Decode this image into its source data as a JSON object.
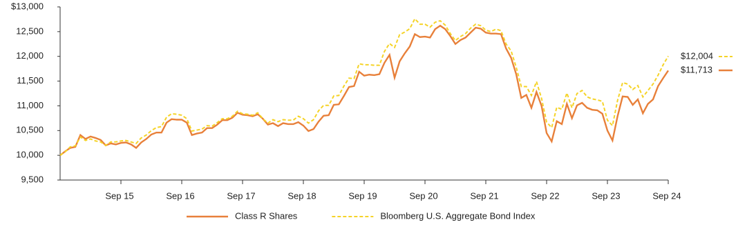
{
  "chart_data": {
    "type": "line",
    "categories": [
      null,
      null,
      null,
      null,
      null,
      null,
      null,
      null,
      null,
      null,
      null,
      null,
      "Sep 15",
      null,
      null,
      null,
      null,
      null,
      null,
      null,
      null,
      null,
      null,
      null,
      "Sep 16",
      null,
      null,
      null,
      null,
      null,
      null,
      null,
      null,
      null,
      null,
      null,
      "Sep 17",
      null,
      null,
      null,
      null,
      null,
      null,
      null,
      null,
      null,
      null,
      null,
      "Sep 18",
      null,
      null,
      null,
      null,
      null,
      null,
      null,
      null,
      null,
      null,
      null,
      "Sep 19",
      null,
      null,
      null,
      null,
      null,
      null,
      null,
      null,
      null,
      null,
      null,
      "Sep 20",
      null,
      null,
      null,
      null,
      null,
      null,
      null,
      null,
      null,
      null,
      null,
      "Sep 21",
      null,
      null,
      null,
      null,
      null,
      null,
      null,
      null,
      null,
      null,
      null,
      "Sep 22",
      null,
      null,
      null,
      null,
      null,
      null,
      null,
      null,
      null,
      null,
      null,
      "Sep 23",
      null,
      null,
      null,
      null,
      null,
      null,
      null,
      null,
      null,
      null,
      null,
      "Sep 24"
    ],
    "series": [
      {
        "name": "Class R Shares",
        "color": "#e8803a",
        "dash": false,
        "values": [
          10000,
          10080,
          10150,
          10170,
          10410,
          10330,
          10380,
          10350,
          10310,
          10200,
          10240,
          10220,
          10250,
          10260,
          10220,
          10150,
          10260,
          10330,
          10420,
          10460,
          10460,
          10660,
          10730,
          10720,
          10720,
          10660,
          10410,
          10440,
          10460,
          10550,
          10550,
          10620,
          10710,
          10710,
          10760,
          10860,
          10820,
          10810,
          10790,
          10830,
          10740,
          10620,
          10650,
          10590,
          10650,
          10630,
          10630,
          10670,
          10600,
          10490,
          10530,
          10680,
          10800,
          10810,
          11020,
          11030,
          11200,
          11380,
          11400,
          11690,
          11610,
          11630,
          11620,
          11640,
          11870,
          12030,
          11570,
          11900,
          12060,
          12200,
          12450,
          12390,
          12400,
          12380,
          12550,
          12620,
          12550,
          12410,
          12250,
          12330,
          12380,
          12480,
          12580,
          12560,
          12480,
          12460,
          12460,
          12450,
          12160,
          11970,
          11640,
          11160,
          11220,
          10960,
          11280,
          11000,
          10450,
          10280,
          10690,
          10630,
          11040,
          10750,
          11010,
          11060,
          10960,
          10920,
          10910,
          10840,
          10500,
          10300,
          10790,
          11190,
          11180,
          11020,
          11130,
          10850,
          11040,
          11130,
          11400,
          11560,
          11713
        ],
        "value_labels": [
          null,
          null,
          null,
          null,
          null,
          null,
          null,
          null,
          null,
          null,
          null,
          null,
          null,
          null,
          null,
          null,
          null,
          null,
          null,
          null,
          null,
          null,
          null,
          null,
          null,
          null,
          null,
          null,
          null,
          null,
          null,
          null,
          null,
          null,
          null,
          null,
          null,
          null,
          null,
          null,
          null,
          null,
          null,
          null,
          null,
          null,
          null,
          null,
          null,
          null,
          null,
          null,
          null,
          null,
          null,
          null,
          null,
          null,
          null,
          null,
          null,
          null,
          null,
          null,
          null,
          null,
          null,
          null,
          null,
          null,
          null,
          null,
          null,
          null,
          null,
          null,
          null,
          null,
          null,
          null,
          null,
          null,
          null,
          null,
          null,
          null,
          null,
          null,
          null,
          null,
          null,
          null,
          null,
          null,
          null,
          null,
          null,
          null,
          null,
          null,
          null,
          null,
          null,
          null,
          null,
          null,
          null,
          null,
          null,
          null,
          null,
          null,
          null,
          null,
          null,
          null,
          null,
          null,
          null,
          null,
          "$11,713"
        ]
      },
      {
        "name": "Bloomberg U.S. Aggregate Bond Index",
        "color": "#f5d327",
        "dash": true,
        "values": [
          10000,
          10070,
          10170,
          10190,
          10370,
          10300,
          10330,
          10290,
          10270,
          10200,
          10270,
          10270,
          10290,
          10300,
          10270,
          10240,
          10350,
          10410,
          10500,
          10560,
          10580,
          10770,
          10840,
          10830,
          10810,
          10740,
          10490,
          10510,
          10530,
          10600,
          10590,
          10660,
          10740,
          10740,
          10790,
          10890,
          10840,
          10830,
          10810,
          10860,
          10740,
          10650,
          10720,
          10680,
          10720,
          10710,
          10710,
          10790,
          10740,
          10650,
          10720,
          10900,
          11010,
          11010,
          11200,
          11210,
          11400,
          11560,
          11550,
          11850,
          11830,
          11830,
          11820,
          11820,
          12100,
          12260,
          12180,
          12440,
          12490,
          12560,
          12760,
          12650,
          12650,
          12590,
          12690,
          12720,
          12630,
          12460,
          12320,
          12400,
          12460,
          12570,
          12650,
          12620,
          12530,
          12500,
          12550,
          12520,
          12250,
          12110,
          11780,
          11390,
          11390,
          11210,
          11490,
          11150,
          10670,
          10560,
          10970,
          10930,
          11260,
          10960,
          11250,
          11310,
          11180,
          11140,
          11120,
          11090,
          10710,
          10600,
          11110,
          11470,
          11440,
          11330,
          11410,
          11180,
          11310,
          11440,
          11620,
          11830,
          12004
        ],
        "value_labels": [
          null,
          null,
          null,
          null,
          null,
          null,
          null,
          null,
          null,
          null,
          null,
          null,
          null,
          null,
          null,
          null,
          null,
          null,
          null,
          null,
          null,
          null,
          null,
          null,
          null,
          null,
          null,
          null,
          null,
          null,
          null,
          null,
          null,
          null,
          null,
          null,
          null,
          null,
          null,
          null,
          null,
          null,
          null,
          null,
          null,
          null,
          null,
          null,
          null,
          null,
          null,
          null,
          null,
          null,
          null,
          null,
          null,
          null,
          null,
          null,
          null,
          null,
          null,
          null,
          null,
          null,
          null,
          null,
          null,
          null,
          null,
          null,
          null,
          null,
          null,
          null,
          null,
          null,
          null,
          null,
          null,
          null,
          null,
          null,
          null,
          null,
          null,
          null,
          null,
          null,
          null,
          null,
          null,
          null,
          null,
          null,
          null,
          null,
          null,
          null,
          null,
          null,
          null,
          null,
          null,
          null,
          null,
          null,
          null,
          null,
          null,
          null,
          null,
          null,
          null,
          null,
          null,
          null,
          null,
          null,
          "$12,004"
        ]
      }
    ],
    "ylim": [
      9500,
      13000
    ],
    "yticks": [
      {
        "value": 9500,
        "label": "9,500"
      },
      {
        "value": 10000,
        "label": "10,000"
      },
      {
        "value": 10500,
        "label": "10,500"
      },
      {
        "value": 11000,
        "label": "11,000"
      },
      {
        "value": 11500,
        "label": "11,500"
      },
      {
        "value": 12000,
        "label": "12,000"
      },
      {
        "value": 12500,
        "label": "12,500"
      },
      {
        "value": 13000,
        "label": "$13,000"
      }
    ],
    "grid": false,
    "legend": "bottom"
  }
}
